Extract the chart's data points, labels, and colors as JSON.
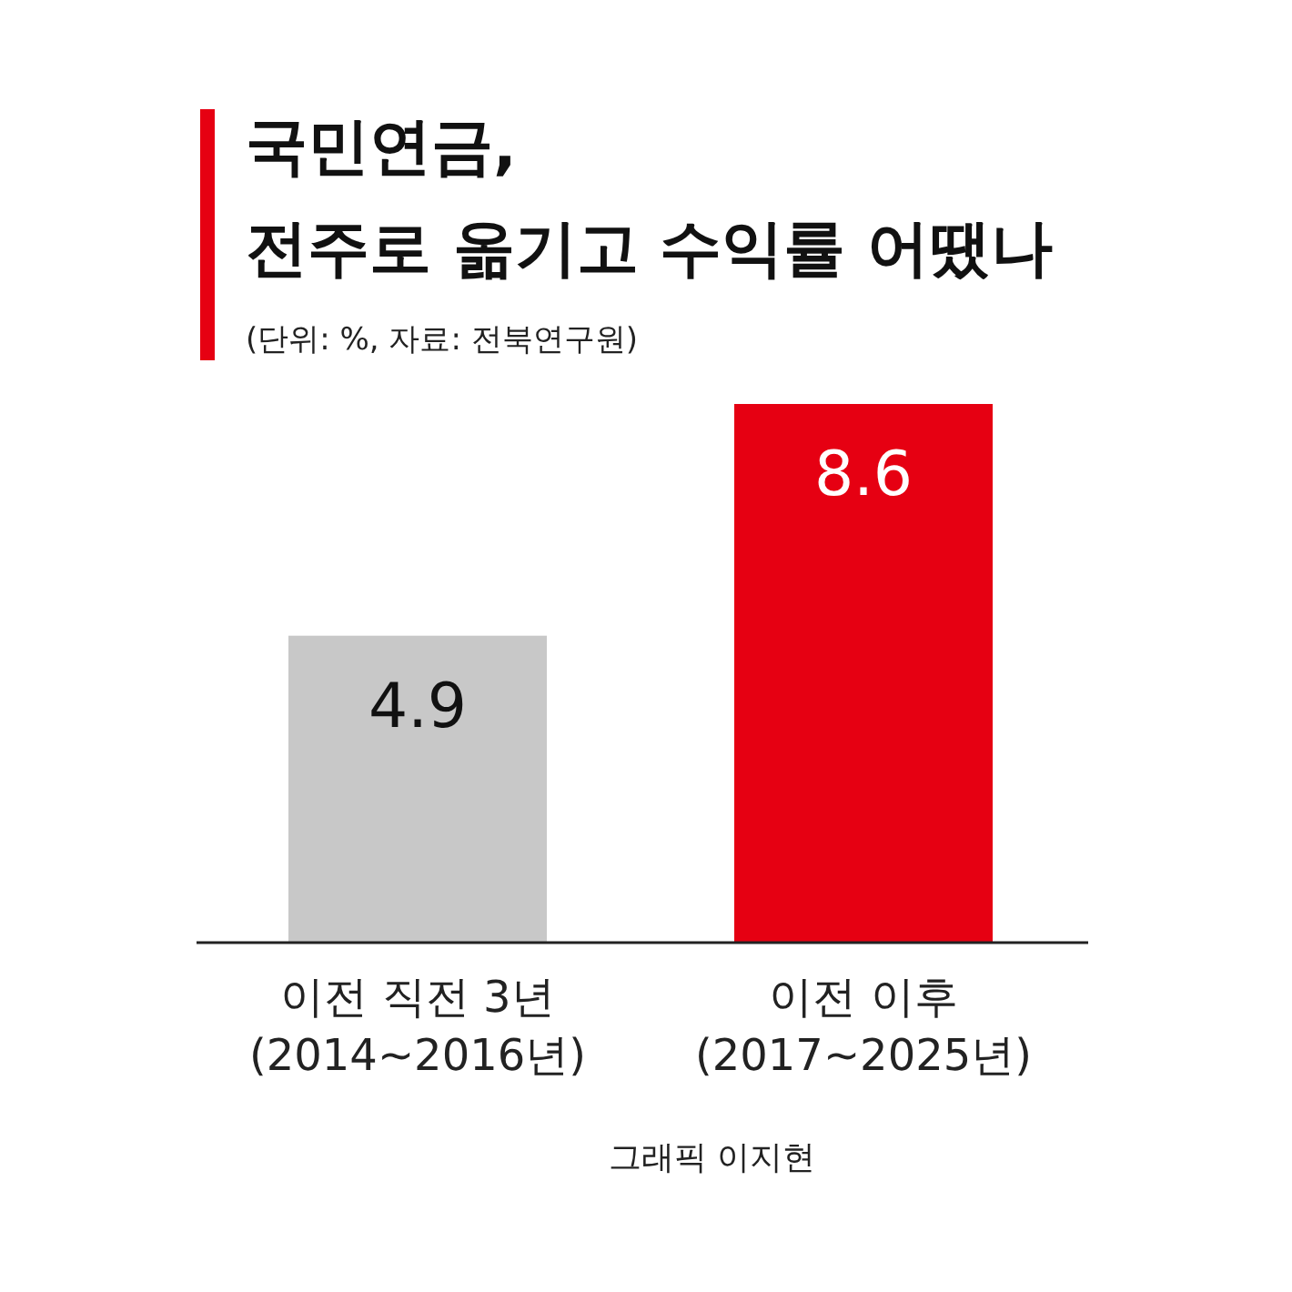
{
  "chart_data": {
    "type": "bar",
    "title": "국민연금,\n전주로 옮기고 수익률 어땠나",
    "subtitle": "(단위: %, 자료: 전북연구원)",
    "categories": [
      "이전 직전 3년\n(2014~2016년)",
      "이전 이후\n(2017~2025년)"
    ],
    "values": [
      4.9,
      8.6
    ],
    "colors": [
      "#c8c8c8",
      "#e60012"
    ],
    "data_labels": true,
    "annotations": [
      "그래픽 이지현"
    ]
  }
}
